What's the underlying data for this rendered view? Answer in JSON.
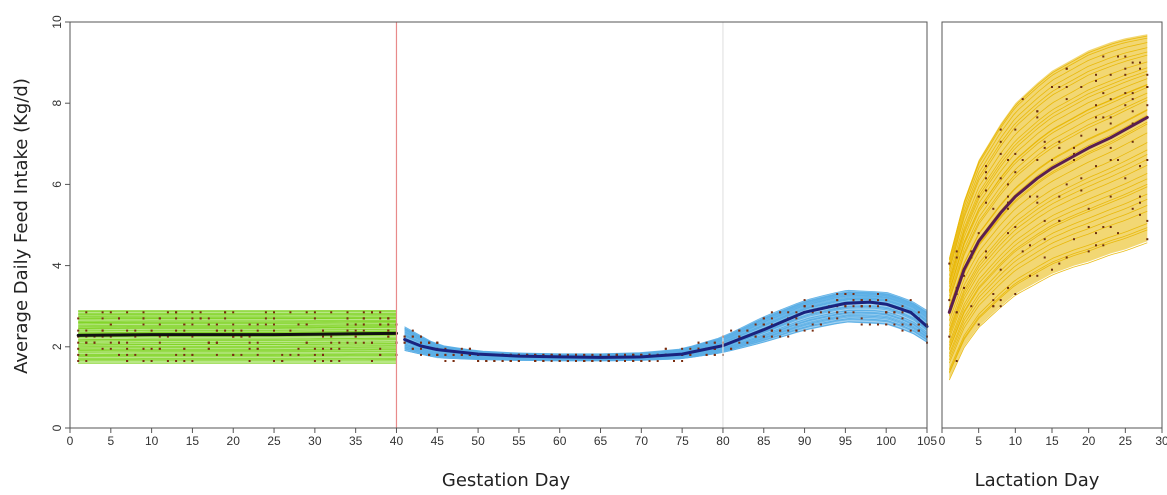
{
  "chart_data": {
    "type": "line",
    "ylabel": "Average Daily Feed Intake (Kg/d)",
    "ylim": [
      0,
      10
    ],
    "yticks": [
      "0",
      "2",
      "4",
      "6",
      "8",
      "10"
    ],
    "grid": false,
    "panels": [
      {
        "name": "gestation",
        "xlabel": "Gestation Day",
        "xlim": [
          0,
          105
        ],
        "xticks": [
          "0",
          "5",
          "10",
          "15",
          "20",
          "25",
          "30",
          "35",
          "40",
          "45",
          "50",
          "55",
          "60",
          "65",
          "70",
          "75",
          "80",
          "85",
          "90",
          "95",
          "100",
          "105"
        ],
        "segments": [
          {
            "phase": "days 1-40",
            "band_color": "#7ed321",
            "band": {
              "x": [
                1,
                40
              ],
              "lower": [
                1.6,
                1.6
              ],
              "upper": [
                2.9,
                2.9
              ]
            },
            "mean_color": "#111111",
            "mean": {
              "x": [
                1,
                5,
                10,
                15,
                20,
                25,
                30,
                35,
                40
              ],
              "y": [
                2.28,
                2.29,
                2.3,
                2.3,
                2.3,
                2.3,
                2.31,
                2.32,
                2.33
              ]
            }
          },
          {
            "phase": "days 41-105",
            "band_color": "#5aaee6",
            "band": {
              "x": [
                41,
                45,
                50,
                55,
                60,
                65,
                70,
                75,
                80,
                85,
                90,
                95,
                100,
                103,
                105
              ],
              "lower": [
                1.9,
                1.72,
                1.68,
                1.66,
                1.65,
                1.65,
                1.66,
                1.7,
                1.85,
                2.1,
                2.4,
                2.6,
                2.55,
                2.35,
                2.1
              ],
              "upper": [
                2.5,
                2.05,
                1.9,
                1.85,
                1.83,
                1.83,
                1.86,
                1.95,
                2.25,
                2.75,
                3.15,
                3.4,
                3.35,
                3.15,
                2.9
              ]
            },
            "mean_color": "#1a237e",
            "mean": {
              "x": [
                41,
                43,
                45,
                50,
                55,
                60,
                65,
                70,
                75,
                80,
                85,
                90,
                95,
                98,
                100,
                103,
                105
              ],
              "y": [
                2.18,
                2.02,
                1.93,
                1.82,
                1.77,
                1.75,
                1.74,
                1.75,
                1.82,
                2.03,
                2.42,
                2.85,
                3.07,
                3.1,
                3.05,
                2.85,
                2.5
              ]
            }
          }
        ],
        "vlines": [
          {
            "x": 40,
            "color": "#e88a8a"
          },
          {
            "x": 80,
            "color": "#e3e3e3"
          }
        ],
        "obs_color": "#7a2d10",
        "observations_note": "individual daily intake records plotted at 0.15 kg resolution"
      },
      {
        "name": "lactation",
        "xlabel": "Lactation Day",
        "xlim": [
          0,
          30
        ],
        "xticks": [
          "0",
          "5",
          "10",
          "15",
          "20",
          "25",
          "30"
        ],
        "segments": [
          {
            "phase": "days 1-28",
            "band_color": "#e8b600",
            "band": {
              "x": [
                1,
                3,
                5,
                8,
                10,
                13,
                15,
                18,
                20,
                23,
                25,
                28
              ],
              "lower": [
                1.2,
                2.0,
                2.5,
                3.0,
                3.3,
                3.6,
                3.8,
                4.0,
                4.1,
                4.3,
                4.4,
                4.6
              ],
              "upper": [
                4.2,
                5.6,
                6.6,
                7.5,
                8.0,
                8.5,
                8.8,
                9.1,
                9.3,
                9.5,
                9.6,
                9.7
              ]
            },
            "mean_color": "#5b1f4f",
            "mean": {
              "x": [
                1,
                3,
                5,
                8,
                10,
                13,
                15,
                18,
                20,
                23,
                25,
                28
              ],
              "y": [
                2.85,
                3.9,
                4.6,
                5.3,
                5.7,
                6.15,
                6.4,
                6.7,
                6.9,
                7.15,
                7.35,
                7.65
              ]
            }
          }
        ],
        "vlines": [],
        "obs_color": "#6b2d10"
      }
    ]
  }
}
